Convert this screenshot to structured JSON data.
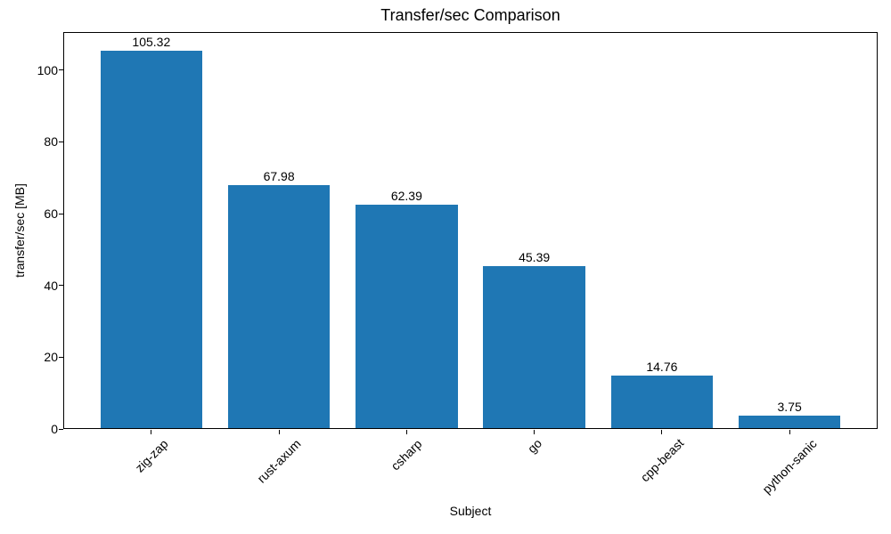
{
  "chart_data": {
    "type": "bar",
    "title": "Transfer/sec Comparison",
    "xlabel": "Subject",
    "ylabel": "transfer/sec [MB]",
    "categories": [
      "zig-zap",
      "rust-axum",
      "csharp",
      "go",
      "cpp-beast",
      "python-sanic"
    ],
    "values": [
      105.32,
      67.98,
      62.39,
      45.39,
      14.76,
      3.75
    ],
    "value_labels": [
      "105.32",
      "67.98",
      "62.39",
      "45.39",
      "14.76",
      "3.75"
    ],
    "yticks": [
      0,
      20,
      40,
      60,
      80,
      100
    ],
    "ytick_labels": [
      "0",
      "20",
      "40",
      "60",
      "80",
      "100"
    ],
    "ylim": [
      0,
      110.6
    ],
    "bar_width_fraction": 0.8,
    "grid": false,
    "legend": false,
    "bar_color": "#1f77b4",
    "text_color": "#000000",
    "axis_color": "#000000",
    "background_color": "#ffffff"
  }
}
